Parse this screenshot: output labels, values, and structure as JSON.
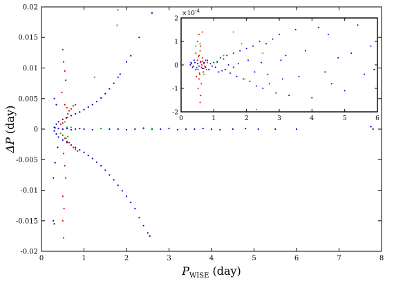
{
  "chart_data": [
    {
      "type": "scatter",
      "title": "",
      "xlabel": "P_WISE (day)",
      "xlabel_main": "P",
      "xlabel_sub": "WISE",
      "xlabel_unit": " (day)",
      "ylabel": "ΔP (day)",
      "ylabel_main": "ΔP",
      "ylabel_unit": " (day)",
      "xlim": [
        0,
        8
      ],
      "ylim": [
        -0.02,
        0.02
      ],
      "xticks": [
        0,
        1,
        2,
        3,
        4,
        5,
        6,
        7,
        8
      ],
      "yticks": [
        -0.02,
        -0.015,
        -0.01,
        -0.005,
        0,
        0.005,
        0.01,
        0.015,
        0.02
      ],
      "xtick_labels": [
        "0",
        "1",
        "2",
        "3",
        "4",
        "5",
        "6",
        "7",
        "8"
      ],
      "ytick_labels": [
        "-0.02",
        "-0.015",
        "-0.01",
        "-0.005",
        "0",
        "0.005",
        "0.01",
        "0.015",
        "0.02"
      ],
      "grid": false,
      "series": [
        {
          "color": "#0000cc",
          "points": [
            [
              0.3,
              0.0003
            ],
            [
              0.35,
              0.0008
            ],
            [
              0.4,
              0.0012
            ],
            [
              0.5,
              0.0016
            ],
            [
              0.6,
              0.0019
            ],
            [
              0.7,
              0.0022
            ],
            [
              0.8,
              0.0025
            ],
            [
              0.9,
              0.0028
            ],
            [
              1.0,
              0.0032
            ],
            [
              1.1,
              0.0036
            ],
            [
              1.2,
              0.004
            ],
            [
              1.3,
              0.0045
            ],
            [
              1.4,
              0.0051
            ],
            [
              1.5,
              0.0058
            ],
            [
              1.6,
              0.0066
            ],
            [
              1.7,
              0.0075
            ],
            [
              1.8,
              0.0085
            ],
            [
              1.85,
              0.009
            ],
            [
              2.0,
              0.011
            ],
            [
              2.1,
              0.012
            ],
            [
              0.3,
              -0.0003
            ],
            [
              0.35,
              -0.0008
            ],
            [
              0.4,
              -0.0013
            ],
            [
              0.5,
              -0.0018
            ],
            [
              0.6,
              -0.0022
            ],
            [
              0.7,
              -0.0026
            ],
            [
              0.8,
              -0.003
            ],
            [
              0.9,
              -0.0034
            ],
            [
              1.0,
              -0.0038
            ],
            [
              1.1,
              -0.0043
            ],
            [
              1.2,
              -0.0048
            ],
            [
              1.3,
              -0.0054
            ],
            [
              1.4,
              -0.006
            ],
            [
              1.5,
              -0.0067
            ],
            [
              1.6,
              -0.0075
            ],
            [
              1.7,
              -0.0083
            ],
            [
              1.8,
              -0.0092
            ],
            [
              1.9,
              -0.0101
            ],
            [
              2.0,
              -0.011
            ],
            [
              2.1,
              -0.012
            ],
            [
              2.2,
              -0.013
            ],
            [
              2.3,
              -0.0145
            ],
            [
              2.4,
              -0.0158
            ],
            [
              2.5,
              -0.017
            ],
            [
              2.55,
              -0.0175
            ],
            [
              0.32,
              0.0002
            ],
            [
              0.4,
              0.0001
            ],
            [
              0.5,
              0.0
            ],
            [
              0.6,
              0.0001
            ],
            [
              0.7,
              -0.0001
            ],
            [
              0.8,
              0.0
            ],
            [
              0.9,
              0.0001
            ],
            [
              1.0,
              0.0
            ],
            [
              1.2,
              -0.0001
            ],
            [
              1.4,
              0.0001
            ],
            [
              1.6,
              0.0
            ],
            [
              1.8,
              0.0
            ],
            [
              2.0,
              -0.0001
            ],
            [
              2.2,
              0.0
            ],
            [
              2.4,
              0.0001
            ],
            [
              2.6,
              0.0
            ],
            [
              2.8,
              0.0
            ],
            [
              3.0,
              0.0001
            ],
            [
              3.2,
              -0.0001
            ],
            [
              3.4,
              0.0
            ],
            [
              3.6,
              0.0
            ],
            [
              3.8,
              0.0001
            ],
            [
              4.0,
              0.0
            ],
            [
              4.2,
              -0.0001
            ],
            [
              4.5,
              0.0
            ],
            [
              4.8,
              0.0001
            ],
            [
              5.1,
              0.0
            ],
            [
              5.5,
              0.0
            ],
            [
              6.0,
              0.0
            ],
            [
              7.75,
              0.0004
            ],
            [
              7.8,
              0.0
            ],
            [
              0.3,
              0.005
            ],
            [
              0.32,
              -0.0055
            ],
            [
              0.28,
              -0.008
            ],
            [
              0.28,
              -0.015
            ],
            [
              0.3,
              -0.0155
            ],
            [
              0.35,
              0.004
            ],
            [
              0.38,
              -0.003
            ],
            [
              2.6,
              0.019
            ],
            [
              2.3,
              0.015
            ]
          ]
        },
        {
          "color": "#dd0000",
          "points": [
            [
              0.5,
              0.013
            ],
            [
              0.52,
              0.011
            ],
            [
              0.55,
              0.0095
            ],
            [
              0.57,
              0.008
            ],
            [
              0.48,
              0.006
            ],
            [
              0.55,
              0.004
            ],
            [
              0.6,
              0.0035
            ],
            [
              0.62,
              0.0025
            ],
            [
              0.65,
              0.003
            ],
            [
              0.7,
              0.0033
            ],
            [
              0.75,
              0.0038
            ],
            [
              0.8,
              0.004
            ],
            [
              0.58,
              0.0018
            ],
            [
              0.5,
              0.001
            ],
            [
              0.45,
              0.0008
            ],
            [
              0.5,
              -0.001
            ],
            [
              0.55,
              -0.0015
            ],
            [
              0.6,
              -0.002
            ],
            [
              0.65,
              -0.0022
            ],
            [
              0.7,
              -0.0026
            ],
            [
              0.75,
              -0.003
            ],
            [
              0.8,
              -0.0033
            ],
            [
              0.85,
              -0.0036
            ],
            [
              0.52,
              -0.004
            ],
            [
              0.55,
              -0.006
            ],
            [
              0.57,
              -0.008
            ],
            [
              0.5,
              -0.011
            ],
            [
              0.53,
              -0.013
            ],
            [
              0.5,
              -0.015
            ],
            [
              0.52,
              -0.0178
            ]
          ]
        },
        {
          "color": "#00bb00",
          "points": [
            [
              1.8,
              0.0195
            ],
            [
              1.78,
              0.017
            ],
            [
              1.25,
              0.0085
            ],
            [
              0.55,
              0.0012
            ],
            [
              0.6,
              0.0003
            ],
            [
              0.62,
              -0.0012
            ],
            [
              0.58,
              -0.0015
            ],
            [
              1.4,
              0.0001
            ],
            [
              2.4,
              0.0002
            ],
            [
              2.6,
              0.0001
            ],
            [
              0.7,
              0.0003
            ],
            [
              0.45,
              -0.0007
            ]
          ]
        }
      ]
    },
    {
      "type": "scatter",
      "title": "",
      "xlabel": "",
      "ylabel": "",
      "xlim": [
        0,
        6
      ],
      "ylim": [
        -2,
        2
      ],
      "y_scale_label": "×10",
      "y_scale_exponent": "-4",
      "xticks": [
        0,
        1,
        2,
        3,
        4,
        5,
        6
      ],
      "yticks": [
        -2,
        -1,
        0,
        1,
        2
      ],
      "xtick_labels": [
        "0",
        "1",
        "2",
        "3",
        "4",
        "5",
        "6"
      ],
      "ytick_labels": [
        "-2",
        "-1",
        "0",
        "1",
        "2"
      ],
      "grid": false,
      "series": [
        {
          "color": "#0000cc",
          "points": [
            [
              0.3,
              0.1
            ],
            [
              0.35,
              -0.1
            ],
            [
              0.4,
              0.2
            ],
            [
              0.45,
              -0.2
            ],
            [
              0.5,
              0.05
            ],
            [
              0.55,
              -0.05
            ],
            [
              0.6,
              0.15
            ],
            [
              0.65,
              -0.15
            ],
            [
              0.7,
              0.1
            ],
            [
              0.75,
              -0.1
            ],
            [
              0.8,
              0.2
            ],
            [
              0.85,
              -0.2
            ],
            [
              0.9,
              0.05
            ],
            [
              0.95,
              -0.05
            ],
            [
              1.0,
              0.1
            ],
            [
              1.05,
              -0.1
            ],
            [
              1.1,
              0.15
            ],
            [
              1.15,
              -0.3
            ],
            [
              1.2,
              0.3
            ],
            [
              1.25,
              -0.25
            ],
            [
              1.3,
              0.25
            ],
            [
              1.35,
              -0.2
            ],
            [
              1.4,
              0.4
            ],
            [
              1.5,
              -0.35
            ],
            [
              1.6,
              0.5
            ],
            [
              1.7,
              -0.5
            ],
            [
              1.8,
              0.6
            ],
            [
              1.9,
              -0.6
            ],
            [
              2.0,
              0.7
            ],
            [
              2.1,
              -0.7
            ],
            [
              2.2,
              0.8
            ],
            [
              2.3,
              -0.9
            ],
            [
              2.4,
              1.0
            ],
            [
              2.5,
              -1.0
            ],
            [
              2.6,
              0.9
            ],
            [
              2.7,
              -0.8
            ],
            [
              2.8,
              1.1
            ],
            [
              2.9,
              -1.2
            ],
            [
              3.0,
              1.3
            ],
            [
              3.1,
              -0.6
            ],
            [
              3.2,
              0.4
            ],
            [
              3.3,
              -1.3
            ],
            [
              3.5,
              1.5
            ],
            [
              3.6,
              -0.5
            ],
            [
              3.8,
              0.6
            ],
            [
              4.0,
              -1.4
            ],
            [
              4.2,
              1.6
            ],
            [
              4.4,
              -0.3
            ],
            [
              4.5,
              1.3
            ],
            [
              4.6,
              -0.8
            ],
            [
              4.8,
              0.3
            ],
            [
              5.0,
              -1.1
            ],
            [
              5.2,
              0.5
            ],
            [
              5.4,
              1.7
            ],
            [
              5.6,
              -0.4
            ],
            [
              5.8,
              0.8
            ],
            [
              5.9,
              -0.2
            ],
            [
              1.45,
              0.0
            ],
            [
              1.6,
              -0.1
            ],
            [
              1.75,
              0.05
            ],
            [
              2.05,
              0.2
            ],
            [
              2.25,
              -0.3
            ],
            [
              2.45,
              0.1
            ],
            [
              2.65,
              -0.4
            ],
            [
              3.05,
              0.2
            ],
            [
              0.28,
              0.0
            ],
            [
              0.32,
              0.05
            ],
            [
              0.38,
              -0.05
            ],
            [
              0.42,
              0.1
            ],
            [
              0.48,
              -0.12
            ]
          ]
        },
        {
          "color": "#dd0000",
          "points": [
            [
              0.5,
              0.2
            ],
            [
              0.52,
              -0.2
            ],
            [
              0.55,
              0.4
            ],
            [
              0.57,
              -0.4
            ],
            [
              0.6,
              0.1
            ],
            [
              0.62,
              -0.1
            ],
            [
              0.65,
              0.3
            ],
            [
              0.68,
              -0.3
            ],
            [
              0.7,
              0.05
            ],
            [
              0.72,
              -0.05
            ],
            [
              0.58,
              0.6
            ],
            [
              0.55,
              -0.6
            ],
            [
              0.6,
              0.8
            ],
            [
              0.62,
              -0.8
            ],
            [
              0.5,
              1.0
            ],
            [
              0.52,
              -1.0
            ],
            [
              0.55,
              1.3
            ],
            [
              0.6,
              -1.3
            ],
            [
              0.65,
              1.4
            ],
            [
              0.58,
              -1.6
            ],
            [
              0.45,
              0.5
            ],
            [
              0.47,
              -0.5
            ],
            [
              0.75,
              0.2
            ],
            [
              0.78,
              -0.2
            ],
            [
              0.8,
              0.1
            ],
            [
              0.63,
              0.0
            ],
            [
              0.66,
              0.15
            ],
            [
              0.69,
              -0.15
            ],
            [
              0.53,
              0.35
            ],
            [
              0.56,
              -0.35
            ]
          ]
        },
        {
          "color": "#00bb00",
          "points": [
            [
              1.6,
              1.4
            ],
            [
              1.85,
              0.9
            ],
            [
              1.1,
              0.1
            ],
            [
              2.3,
              -1.9
            ],
            [
              1.95,
              -0.6
            ],
            [
              0.58,
              0.9
            ],
            [
              0.7,
              -0.4
            ],
            [
              1.3,
              0.4
            ],
            [
              2.5,
              0.5
            ],
            [
              0.45,
              0.8
            ]
          ]
        }
      ]
    }
  ]
}
